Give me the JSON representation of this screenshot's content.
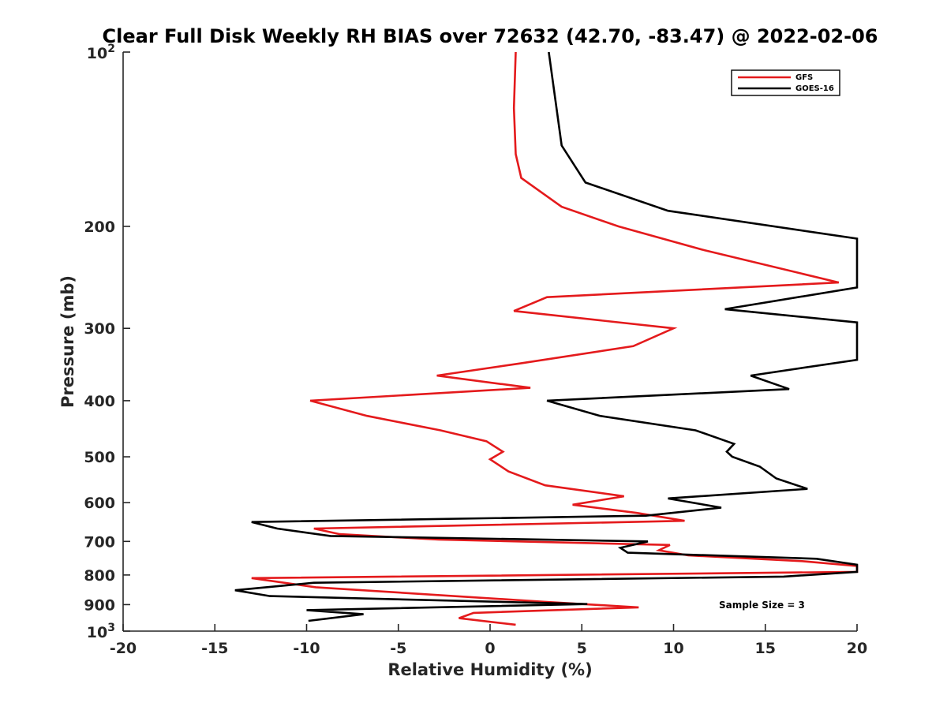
{
  "chart_data": {
    "type": "line",
    "title": "Clear Full Disk Weekly RH BIAS over 72632 (42.70, -83.47) @ 2022-02-06",
    "xlabel": "Relative Humidity (%)",
    "ylabel": "Pressure (mb)",
    "xlim": [
      -20,
      20
    ],
    "ylim": [
      100,
      1000
    ],
    "y_scale": "log",
    "y_reversed": true,
    "grid": false,
    "legend_position": "top-right",
    "x_ticks": [
      -20,
      -15,
      -10,
      -5,
      0,
      5,
      10,
      15,
      20
    ],
    "x_tick_labels": [
      "-20",
      "-15",
      "-10",
      "-5",
      "0",
      "5",
      "10",
      "15",
      "20"
    ],
    "y_ticks": [
      200,
      300,
      400,
      500,
      600,
      700,
      800,
      900
    ],
    "y_tick_labels": [
      "200",
      "300",
      "400",
      "500",
      "600",
      "700",
      "800",
      "900"
    ],
    "y_tick_top": {
      "base": "10",
      "exp": "2"
    },
    "y_tick_bottom": {
      "base": "10",
      "exp": "3"
    },
    "annotation": "Sample Size = 3",
    "series": [
      {
        "name": "GFS",
        "color": "#e41a1c",
        "points": [
          [
            1.4,
            100
          ],
          [
            1.3,
            125
          ],
          [
            1.4,
            150
          ],
          [
            1.7,
            165
          ],
          [
            3.9,
            185
          ],
          [
            7.0,
            200
          ],
          [
            11.7,
            220
          ],
          [
            19.0,
            250
          ],
          [
            3.1,
            265
          ],
          [
            1.3,
            280
          ],
          [
            10.0,
            300
          ],
          [
            7.8,
            322
          ],
          [
            1.6,
            345
          ],
          [
            -2.9,
            362
          ],
          [
            2.2,
            380
          ],
          [
            -9.8,
            400
          ],
          [
            -6.7,
            425
          ],
          [
            -2.7,
            450
          ],
          [
            -0.2,
            470
          ],
          [
            0.7,
            490
          ],
          [
            0.0,
            505
          ],
          [
            1.0,
            530
          ],
          [
            3.0,
            560
          ],
          [
            7.3,
            585
          ],
          [
            4.5,
            605
          ],
          [
            8.0,
            625
          ],
          [
            10.6,
            645
          ],
          [
            -9.6,
            665
          ],
          [
            -8.2,
            680
          ],
          [
            -2.8,
            695
          ],
          [
            9.8,
            710
          ],
          [
            9.2,
            725
          ],
          [
            10.8,
            740
          ],
          [
            17.0,
            757
          ],
          [
            20.0,
            772
          ],
          [
            20.0,
            790
          ],
          [
            -13.0,
            810
          ],
          [
            -9.5,
            840
          ],
          [
            3.0,
            890
          ],
          [
            8.1,
            910
          ],
          [
            -0.9,
            930
          ],
          [
            -1.7,
            950
          ],
          [
            1.4,
            975
          ]
        ]
      },
      {
        "name": "GOES-16",
        "color": "#000000",
        "points": [
          [
            3.2,
            100
          ],
          [
            3.9,
            145
          ],
          [
            5.2,
            168
          ],
          [
            9.7,
            188
          ],
          [
            20.0,
            210
          ],
          [
            20.0,
            255
          ],
          [
            12.8,
            278
          ],
          [
            20.0,
            293
          ],
          [
            20.0,
            340
          ],
          [
            14.2,
            362
          ],
          [
            16.3,
            382
          ],
          [
            3.1,
            400
          ],
          [
            6.0,
            425
          ],
          [
            11.2,
            450
          ],
          [
            13.3,
            475
          ],
          [
            12.9,
            490
          ],
          [
            13.2,
            500
          ],
          [
            14.7,
            520
          ],
          [
            15.6,
            545
          ],
          [
            17.3,
            568
          ],
          [
            9.7,
            590
          ],
          [
            12.6,
            612
          ],
          [
            8.5,
            632
          ],
          [
            -13.0,
            648
          ],
          [
            -11.6,
            665
          ],
          [
            -8.7,
            685
          ],
          [
            8.6,
            700
          ],
          [
            7.1,
            718
          ],
          [
            7.5,
            732
          ],
          [
            17.8,
            750
          ],
          [
            20.0,
            768
          ],
          [
            20.0,
            790
          ],
          [
            16.0,
            805
          ],
          [
            -9.6,
            825
          ],
          [
            -13.9,
            850
          ],
          [
            -12.0,
            870
          ],
          [
            5.3,
            898
          ],
          [
            -10.0,
            920
          ],
          [
            -6.9,
            935
          ],
          [
            -9.9,
            960
          ]
        ]
      }
    ]
  }
}
